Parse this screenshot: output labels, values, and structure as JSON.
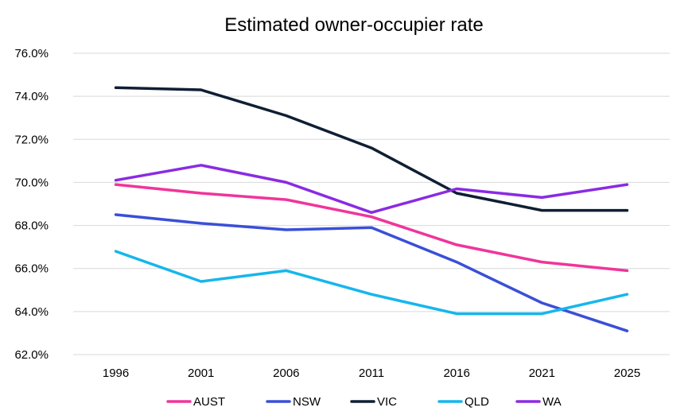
{
  "chart_data": {
    "type": "line",
    "title": "Estimated owner-occupier rate",
    "xlabel": "",
    "ylabel": "",
    "categories": [
      "1996",
      "2001",
      "2006",
      "2011",
      "2016",
      "2021",
      "2025"
    ],
    "ylim": [
      62.0,
      76.0
    ],
    "yticks": [
      62.0,
      64.0,
      66.0,
      68.0,
      70.0,
      72.0,
      74.0,
      76.0
    ],
    "ytick_labels": [
      "62.0%",
      "64.0%",
      "66.0%",
      "68.0%",
      "70.0%",
      "72.0%",
      "74.0%",
      "76.0%"
    ],
    "grid": true,
    "legend_position": "bottom",
    "series": [
      {
        "name": "AUST",
        "color": "#f0359a",
        "values": [
          69.9,
          69.5,
          69.2,
          68.4,
          67.1,
          66.3,
          65.9
        ]
      },
      {
        "name": "NSW",
        "color": "#3a4fd8",
        "values": [
          68.5,
          68.1,
          67.8,
          67.9,
          66.3,
          64.4,
          63.1
        ]
      },
      {
        "name": "VIC",
        "color": "#0f1f33",
        "values": [
          74.4,
          74.3,
          73.1,
          71.6,
          69.5,
          68.7,
          68.7
        ]
      },
      {
        "name": "QLD",
        "color": "#16b6ec",
        "values": [
          66.8,
          65.4,
          65.9,
          64.8,
          63.9,
          63.9,
          64.8
        ]
      },
      {
        "name": "WA",
        "color": "#8a2be2",
        "values": [
          70.1,
          70.8,
          70.0,
          68.6,
          69.7,
          69.3,
          69.9
        ]
      }
    ]
  }
}
